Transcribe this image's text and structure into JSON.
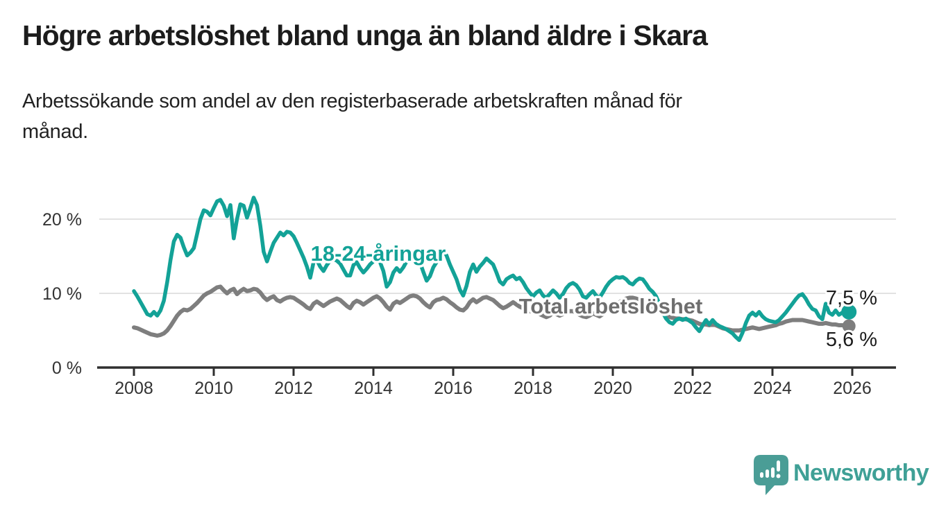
{
  "header": {
    "title": "Högre arbetslöshet bland unga än bland äldre i Skara",
    "subtitle_line1": "Arbetssökande som andel av den registerbaserade arbetskraften månad för",
    "subtitle_line2": "månad."
  },
  "footer": {
    "brand": "Newsworthy"
  },
  "colors": {
    "young_line": "#13A297",
    "total_line": "#7E7E7E",
    "young_label": "#13A297",
    "total_label": "#6E6E6E",
    "axis": "#2f2f2f",
    "grid": "#d8d8d8",
    "end_label_text": "#1c1c1c",
    "logo_bubble": "#4A9D96",
    "logo_text": "#3FA096"
  },
  "chart_data": {
    "type": "line",
    "title": "Högre arbetslöshet bland unga än bland äldre i Skara",
    "subtitle": "Arbetssökande som andel av den registerbaserade arbetskraften månad för månad.",
    "xlabel": "",
    "ylabel": "",
    "frequency": "monthly",
    "x_start_year": 2008,
    "x_end_year": 2026,
    "x_ticks": [
      2008,
      2010,
      2012,
      2014,
      2016,
      2018,
      2020,
      2022,
      2024,
      2026
    ],
    "y_ticks": [
      {
        "value": 0,
        "label": "0 %"
      },
      {
        "value": 10,
        "label": "10 %"
      },
      {
        "value": 20,
        "label": "20 %"
      }
    ],
    "grid_values": [
      10,
      20
    ],
    "ylim": [
      0,
      24
    ],
    "legend_position": "inline-labels",
    "series": [
      {
        "name": "Total arbetslöshet",
        "color": "#7E7E7E",
        "end_value": 5.6,
        "end_label": "5,6 %",
        "values": [
          5.4,
          5.3,
          5.1,
          4.9,
          4.7,
          4.5,
          4.4,
          4.3,
          4.4,
          4.6,
          5.0,
          5.6,
          6.3,
          7.0,
          7.5,
          7.8,
          7.7,
          7.9,
          8.3,
          8.7,
          9.2,
          9.7,
          10.0,
          10.2,
          10.5,
          10.8,
          10.9,
          10.4,
          10.0,
          10.4,
          10.6,
          9.9,
          10.3,
          10.6,
          10.3,
          10.4,
          10.6,
          10.5,
          10.1,
          9.5,
          9.1,
          9.4,
          9.6,
          9.1,
          8.9,
          9.2,
          9.4,
          9.5,
          9.4,
          9.1,
          8.8,
          8.5,
          8.1,
          7.9,
          8.6,
          8.9,
          8.6,
          8.3,
          8.6,
          8.9,
          9.1,
          9.3,
          9.1,
          8.7,
          8.3,
          8.0,
          8.7,
          9.0,
          8.8,
          8.5,
          8.8,
          9.1,
          9.4,
          9.6,
          9.3,
          8.8,
          8.2,
          7.8,
          8.6,
          8.9,
          8.7,
          9.0,
          9.3,
          9.6,
          9.7,
          9.6,
          9.3,
          8.8,
          8.4,
          8.1,
          8.8,
          9.1,
          9.2,
          9.4,
          9.2,
          8.8,
          8.5,
          8.1,
          7.8,
          7.7,
          8.1,
          8.8,
          9.2,
          8.8,
          9.1,
          9.4,
          9.5,
          9.3,
          9.1,
          8.7,
          8.3,
          8.0,
          8.2,
          8.5,
          8.8,
          8.5,
          8.2,
          8.0,
          7.8,
          7.6,
          7.5,
          7.4,
          7.2,
          7.0,
          6.8,
          7.0,
          7.4,
          7.2,
          7.0,
          7.2,
          7.4,
          7.6,
          7.6,
          7.4,
          7.1,
          6.9,
          6.8,
          7.0,
          7.3,
          7.1,
          6.9,
          7.2,
          7.5,
          7.9,
          8.2,
          8.5,
          8.8,
          9.1,
          9.3,
          9.4,
          9.4,
          9.3,
          9.1,
          8.9,
          8.7,
          8.5,
          8.2,
          7.9,
          7.6,
          7.3,
          7.0,
          6.8,
          6.7,
          6.6,
          6.6,
          6.5,
          6.5,
          6.4,
          6.3,
          6.1,
          5.9,
          5.8,
          5.8,
          5.7,
          5.8,
          5.7,
          5.5,
          5.3,
          5.2,
          5.1,
          5.0,
          5.0,
          5.0,
          5.1,
          5.2,
          5.3,
          5.4,
          5.3,
          5.2,
          5.3,
          5.4,
          5.5,
          5.6,
          5.7,
          5.9,
          6.0,
          6.2,
          6.3,
          6.4,
          6.4,
          6.4,
          6.4,
          6.3,
          6.2,
          6.1,
          6.0,
          5.9,
          5.9,
          6.0,
          5.9,
          5.8,
          5.8,
          5.7,
          5.7,
          5.6,
          5.6
        ]
      },
      {
        "name": "18-24-åringar",
        "color": "#13A297",
        "end_value": 7.5,
        "end_label": "7,5 %",
        "values": [
          10.3,
          9.6,
          8.8,
          8.0,
          7.2,
          7.0,
          7.5,
          7.0,
          7.7,
          9.0,
          11.5,
          14.5,
          17.0,
          17.9,
          17.5,
          16.2,
          15.1,
          15.5,
          16.1,
          18.0,
          20.0,
          21.2,
          21.0,
          20.5,
          21.5,
          22.4,
          22.6,
          21.8,
          20.4,
          21.9,
          17.4,
          20.0,
          22.0,
          21.8,
          20.2,
          21.5,
          22.9,
          21.9,
          19.1,
          15.6,
          14.3,
          15.6,
          16.8,
          17.5,
          18.2,
          17.8,
          18.3,
          18.2,
          17.7,
          16.8,
          15.8,
          14.8,
          13.6,
          12.1,
          14.2,
          14.5,
          13.6,
          13.0,
          13.8,
          14.4,
          14.6,
          14.4,
          14.0,
          13.2,
          12.4,
          12.4,
          13.8,
          14.2,
          13.4,
          12.8,
          13.3,
          13.9,
          14.3,
          14.7,
          14.2,
          13.0,
          10.9,
          11.5,
          12.8,
          13.4,
          12.9,
          13.5,
          14.3,
          14.9,
          15.3,
          14.8,
          14.2,
          12.9,
          11.7,
          12.3,
          13.5,
          14.2,
          14.9,
          15.7,
          15.1,
          13.9,
          12.9,
          11.9,
          10.5,
          9.7,
          11.0,
          12.9,
          13.9,
          12.9,
          13.6,
          14.1,
          14.7,
          14.3,
          13.9,
          12.8,
          11.6,
          11.2,
          11.9,
          12.2,
          12.4,
          11.9,
          12.1,
          11.5,
          10.7,
          10.1,
          9.6,
          10.1,
          10.4,
          9.7,
          9.4,
          9.9,
          10.4,
          10.0,
          9.4,
          9.9,
          10.7,
          11.2,
          11.4,
          11.1,
          10.5,
          9.6,
          9.4,
          9.9,
          10.3,
          9.7,
          9.4,
          10.1,
          10.9,
          11.5,
          11.9,
          12.2,
          12.1,
          12.2,
          11.9,
          11.4,
          11.2,
          11.7,
          12.0,
          11.9,
          11.3,
          10.6,
          10.2,
          9.6,
          8.6,
          7.4,
          6.6,
          6.1,
          5.9,
          6.4,
          6.6,
          6.4,
          6.6,
          6.3,
          6.0,
          5.4,
          4.9,
          5.7,
          6.4,
          5.8,
          6.4,
          5.9,
          5.6,
          5.4,
          5.2,
          4.9,
          4.6,
          4.1,
          3.7,
          4.7,
          6.0,
          7.0,
          7.4,
          7.0,
          7.5,
          6.9,
          6.5,
          6.3,
          6.2,
          6.1,
          6.4,
          6.9,
          7.4,
          8.0,
          8.6,
          9.2,
          9.7,
          9.9,
          9.3,
          8.5,
          7.9,
          7.7,
          6.9,
          6.5,
          8.6,
          7.4,
          7.1,
          7.7,
          7.1,
          7.4,
          7.3,
          7.5
        ]
      }
    ]
  }
}
